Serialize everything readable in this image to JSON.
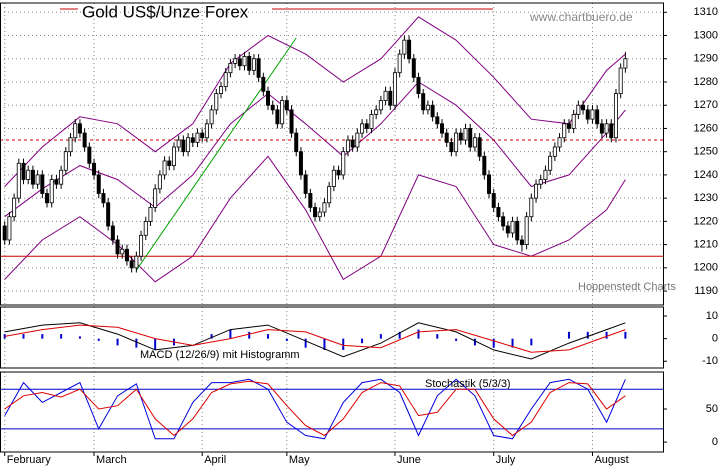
{
  "chart_data": [
    {
      "type": "candlestick",
      "title": "Gold US$/Unze Forex",
      "source": "www.chartbuero.de",
      "credit": "Hoppenstedt Charts",
      "xlim": [
        -1,
        140
      ],
      "xticks": [
        {
          "value": 0,
          "label": "February"
        },
        {
          "value": 19,
          "label": "March"
        },
        {
          "value": 42,
          "label": "April"
        },
        {
          "value": 60,
          "label": "May"
        },
        {
          "value": 83,
          "label": "June"
        },
        {
          "value": 104,
          "label": "July"
        },
        {
          "value": 125,
          "label": "August"
        }
      ],
      "ylim": [
        1184,
        1314
      ],
      "yticks": [
        1190,
        1200,
        1210,
        1220,
        1230,
        1240,
        1250,
        1260,
        1270,
        1280,
        1290,
        1300,
        1310
      ],
      "grid": true,
      "up_color": "#ffffff",
      "down_color": "#000000",
      "ohlc": [
        [
          1218,
          1220,
          1210,
          1212
        ],
        [
          1212,
          1224,
          1210,
          1222
        ],
        [
          1222,
          1232,
          1220,
          1230
        ],
        [
          1230,
          1247,
          1228,
          1245
        ],
        [
          1245,
          1247,
          1236,
          1238
        ],
        [
          1238,
          1244,
          1236,
          1242
        ],
        [
          1242,
          1244,
          1234,
          1236
        ],
        [
          1236,
          1242,
          1234,
          1240
        ],
        [
          1240,
          1242,
          1230,
          1232
        ],
        [
          1232,
          1234,
          1226,
          1228
        ],
        [
          1228,
          1240,
          1226,
          1238
        ],
        [
          1238,
          1240,
          1234,
          1236
        ],
        [
          1236,
          1244,
          1234,
          1242
        ],
        [
          1242,
          1252,
          1240,
          1250
        ],
        [
          1250,
          1258,
          1248,
          1256
        ],
        [
          1256,
          1264,
          1254,
          1262
        ],
        [
          1262,
          1264,
          1256,
          1258
        ],
        [
          1258,
          1260,
          1250,
          1252
        ],
        [
          1252,
          1254,
          1243,
          1245
        ],
        [
          1245,
          1247,
          1238,
          1240
        ],
        [
          1240,
          1242,
          1230,
          1232
        ],
        [
          1232,
          1234,
          1226,
          1228
        ],
        [
          1228,
          1230,
          1216,
          1218
        ],
        [
          1218,
          1220,
          1210,
          1212
        ],
        [
          1212,
          1214,
          1204,
          1206
        ],
        [
          1206,
          1210,
          1204,
          1208
        ],
        [
          1208,
          1210,
          1201,
          1203
        ],
        [
          1203,
          1205,
          1198,
          1200
        ],
        [
          1200,
          1207,
          1198,
          1205
        ],
        [
          1205,
          1216,
          1203,
          1214
        ],
        [
          1214,
          1222,
          1212,
          1220
        ],
        [
          1220,
          1228,
          1218,
          1226
        ],
        [
          1226,
          1236,
          1224,
          1234
        ],
        [
          1234,
          1242,
          1232,
          1240
        ],
        [
          1240,
          1248,
          1238,
          1246
        ],
        [
          1246,
          1248,
          1242,
          1244
        ],
        [
          1244,
          1254,
          1242,
          1252
        ],
        [
          1252,
          1257,
          1250,
          1255
        ],
        [
          1255,
          1257,
          1248,
          1250
        ],
        [
          1250,
          1258,
          1248,
          1256
        ],
        [
          1256,
          1258,
          1252,
          1254
        ],
        [
          1254,
          1260,
          1252,
          1258
        ],
        [
          1258,
          1260,
          1254,
          1256
        ],
        [
          1256,
          1264,
          1254,
          1262
        ],
        [
          1262,
          1270,
          1260,
          1268
        ],
        [
          1268,
          1277,
          1266,
          1275
        ],
        [
          1275,
          1280,
          1273,
          1278
        ],
        [
          1278,
          1286,
          1276,
          1284
        ],
        [
          1284,
          1290,
          1282,
          1288
        ],
        [
          1288,
          1292,
          1286,
          1290
        ],
        [
          1290,
          1292,
          1285,
          1287
        ],
        [
          1287,
          1293,
          1285,
          1291
        ],
        [
          1291,
          1293,
          1283,
          1285
        ],
        [
          1285,
          1292,
          1283,
          1290
        ],
        [
          1290,
          1292,
          1280,
          1282
        ],
        [
          1282,
          1284,
          1274,
          1276
        ],
        [
          1276,
          1278,
          1268,
          1270
        ],
        [
          1270,
          1272,
          1266,
          1268
        ],
        [
          1268,
          1270,
          1260,
          1262
        ],
        [
          1262,
          1274,
          1260,
          1272
        ],
        [
          1272,
          1274,
          1266,
          1268
        ],
        [
          1268,
          1270,
          1256,
          1258
        ],
        [
          1258,
          1260,
          1248,
          1250
        ],
        [
          1250,
          1252,
          1238,
          1240
        ],
        [
          1240,
          1242,
          1230,
          1232
        ],
        [
          1232,
          1234,
          1224,
          1226
        ],
        [
          1226,
          1228,
          1220,
          1222
        ],
        [
          1222,
          1226,
          1220,
          1224
        ],
        [
          1224,
          1230,
          1222,
          1228
        ],
        [
          1228,
          1237,
          1226,
          1235
        ],
        [
          1235,
          1244,
          1233,
          1242
        ],
        [
          1242,
          1244,
          1238,
          1240
        ],
        [
          1240,
          1252,
          1238,
          1250
        ],
        [
          1250,
          1257,
          1248,
          1255
        ],
        [
          1255,
          1257,
          1250,
          1252
        ],
        [
          1252,
          1260,
          1250,
          1258
        ],
        [
          1258,
          1264,
          1256,
          1262
        ],
        [
          1262,
          1264,
          1258,
          1260
        ],
        [
          1260,
          1268,
          1258,
          1266
        ],
        [
          1266,
          1270,
          1264,
          1268
        ],
        [
          1268,
          1274,
          1266,
          1272
        ],
        [
          1272,
          1278,
          1270,
          1276
        ],
        [
          1276,
          1278,
          1268,
          1270
        ],
        [
          1270,
          1286,
          1268,
          1284
        ],
        [
          1284,
          1294,
          1282,
          1292
        ],
        [
          1292,
          1300,
          1290,
          1298
        ],
        [
          1298,
          1300,
          1288,
          1290
        ],
        [
          1290,
          1292,
          1280,
          1282
        ],
        [
          1282,
          1284,
          1273,
          1275
        ],
        [
          1275,
          1277,
          1266,
          1268
        ],
        [
          1268,
          1272,
          1266,
          1270
        ],
        [
          1270,
          1272,
          1263,
          1265
        ],
        [
          1265,
          1267,
          1260,
          1262
        ],
        [
          1262,
          1264,
          1256,
          1258
        ],
        [
          1258,
          1260,
          1252,
          1254
        ],
        [
          1254,
          1256,
          1248,
          1250
        ],
        [
          1250,
          1260,
          1248,
          1258
        ],
        [
          1258,
          1260,
          1253,
          1255
        ],
        [
          1255,
          1262,
          1253,
          1260
        ],
        [
          1260,
          1262,
          1250,
          1252
        ],
        [
          1252,
          1258,
          1250,
          1256
        ],
        [
          1256,
          1258,
          1246,
          1248
        ],
        [
          1248,
          1250,
          1238,
          1240
        ],
        [
          1240,
          1242,
          1230,
          1232
        ],
        [
          1232,
          1234,
          1224,
          1226
        ],
        [
          1226,
          1228,
          1220,
          1222
        ],
        [
          1222,
          1224,
          1216,
          1218
        ],
        [
          1218,
          1220,
          1213,
          1215
        ],
        [
          1215,
          1222,
          1213,
          1220
        ],
        [
          1220,
          1222,
          1210,
          1212
        ],
        [
          1212,
          1214,
          1207,
          1210
        ],
        [
          1210,
          1224,
          1208,
          1222
        ],
        [
          1222,
          1232,
          1220,
          1230
        ],
        [
          1230,
          1238,
          1228,
          1236
        ],
        [
          1236,
          1240,
          1234,
          1238
        ],
        [
          1238,
          1244,
          1236,
          1242
        ],
        [
          1242,
          1250,
          1240,
          1248
        ],
        [
          1248,
          1254,
          1246,
          1252
        ],
        [
          1252,
          1258,
          1250,
          1256
        ],
        [
          1256,
          1264,
          1254,
          1262
        ],
        [
          1262,
          1264,
          1258,
          1260
        ],
        [
          1260,
          1268,
          1258,
          1266
        ],
        [
          1266,
          1272,
          1264,
          1270
        ],
        [
          1270,
          1272,
          1266,
          1268
        ],
        [
          1268,
          1270,
          1262,
          1264
        ],
        [
          1264,
          1270,
          1262,
          1268
        ],
        [
          1268,
          1270,
          1260,
          1262
        ],
        [
          1262,
          1264,
          1256,
          1258
        ],
        [
          1258,
          1264,
          1256,
          1262
        ],
        [
          1262,
          1264,
          1254,
          1256
        ],
        [
          1256,
          1277,
          1254,
          1275
        ],
        [
          1275,
          1288,
          1273,
          1286
        ],
        [
          1286,
          1293,
          1284,
          1290
        ]
      ],
      "bands": {
        "color": "#800080",
        "x": [
          0,
          8,
          16,
          24,
          32,
          40,
          48,
          56,
          64,
          72,
          80,
          88,
          96,
          104,
          112,
          120,
          128,
          132
        ],
        "series": [
          {
            "values": [
              1235,
              1252,
              1265,
              1262,
              1250,
              1262,
              1288,
              1300,
              1292,
              1280,
              1290,
              1308,
              1298,
              1282,
              1264,
              1262,
              1285,
              1292
            ]
          },
          {
            "values": [
              1222,
              1234,
              1244,
              1238,
              1226,
              1240,
              1262,
              1275,
              1262,
              1248,
              1262,
              1280,
              1270,
              1255,
              1235,
              1240,
              1258,
              1268
            ]
          },
          {
            "values": [
              1195,
              1212,
              1222,
              1210,
              1194,
              1205,
              1230,
              1248,
              1225,
              1195,
              1205,
              1240,
              1235,
              1210,
              1205,
              1212,
              1225,
              1238
            ]
          }
        ]
      },
      "hline_color": "#cc0000",
      "hlines": [
        {
          "value": 1205,
          "style": "solid"
        },
        {
          "value": 1255,
          "style": "dashed"
        }
      ],
      "trendline": {
        "color": "#00a000",
        "x": [
          28,
          62
        ],
        "y": [
          1199,
          1299
        ]
      }
    },
    {
      "type": "macd",
      "label": "MACD (12/26/9) mit Histogramm",
      "ylim": [
        -13,
        14
      ],
      "yticks": [
        -10,
        0,
        10
      ],
      "x": [
        0,
        8,
        16,
        24,
        32,
        40,
        48,
        56,
        64,
        72,
        80,
        88,
        96,
        104,
        112,
        120,
        128,
        132
      ],
      "series": [
        {
          "color": "#000000",
          "values": [
            3,
            6,
            7,
            2,
            -5,
            -3,
            4,
            6,
            -1,
            -8,
            -2,
            7,
            3,
            -5,
            -9,
            -2,
            4,
            7
          ]
        },
        {
          "color": "#dd0000",
          "values": [
            1,
            4,
            6,
            5,
            0,
            -3,
            0,
            4,
            3,
            -3,
            -4,
            3,
            4,
            -1,
            -6,
            -5,
            1,
            4
          ]
        }
      ],
      "histogram": {
        "color": "#0000cc",
        "x": [
          0,
          4,
          8,
          12,
          16,
          20,
          24,
          28,
          32,
          36,
          40,
          44,
          48,
          52,
          56,
          60,
          64,
          68,
          72,
          76,
          80,
          84,
          88,
          92,
          96,
          100,
          104,
          108,
          112,
          116,
          120,
          124,
          128,
          132
        ],
        "values": [
          2,
          2,
          2,
          2,
          1,
          -1,
          -3,
          -4,
          -5,
          -3,
          0,
          2,
          4,
          3,
          2,
          -1,
          -4,
          -5,
          -5,
          -2,
          2,
          3,
          4,
          2,
          -1,
          -3,
          -4,
          -4,
          -3,
          0,
          3,
          3,
          3,
          3
        ]
      }
    },
    {
      "type": "stochastic",
      "label": "Stochastik (5/3/3)",
      "ylim": [
        -15,
        106
      ],
      "yticks": [
        0,
        50
      ],
      "levels": [
        20,
        80
      ],
      "level_color": "#0000cc",
      "x": [
        0,
        4,
        8,
        12,
        16,
        20,
        24,
        28,
        32,
        36,
        40,
        44,
        48,
        52,
        56,
        60,
        64,
        68,
        72,
        76,
        80,
        84,
        88,
        92,
        96,
        100,
        104,
        108,
        112,
        116,
        120,
        124,
        128,
        132
      ],
      "series": [
        {
          "color": "#0000dd",
          "values": [
            40,
            90,
            60,
            75,
            90,
            20,
            70,
            88,
            5,
            5,
            60,
            90,
            90,
            95,
            80,
            30,
            10,
            5,
            60,
            90,
            95,
            75,
            10,
            70,
            95,
            70,
            10,
            5,
            50,
            90,
            95,
            80,
            30,
            95
          ]
        },
        {
          "color": "#dd0000",
          "values": [
            50,
            70,
            75,
            68,
            80,
            50,
            55,
            80,
            35,
            10,
            35,
            75,
            88,
            92,
            88,
            55,
            25,
            10,
            35,
            75,
            90,
            85,
            40,
            45,
            80,
            80,
            35,
            10,
            30,
            75,
            90,
            88,
            50,
            70
          ]
        }
      ]
    }
  ]
}
